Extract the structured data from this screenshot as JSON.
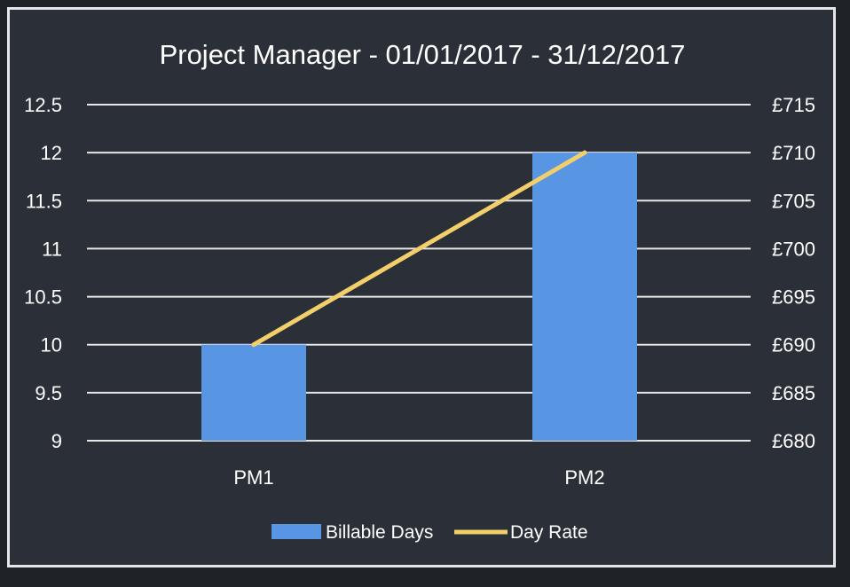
{
  "chart_data": {
    "type": "bar",
    "title": "Project Manager - 01/01/2017 - 31/12/2017",
    "categories": [
      "PM1",
      "PM2"
    ],
    "series": [
      {
        "name": "Billable Days",
        "type": "bar",
        "axis": "left",
        "values": [
          10,
          12
        ]
      },
      {
        "name": "Day Rate",
        "type": "line",
        "axis": "right",
        "values": [
          690,
          710
        ]
      }
    ],
    "y_left": {
      "ylim": [
        9,
        12.5
      ],
      "ticks": [
        9,
        9.5,
        10,
        10.5,
        11,
        11.5,
        12,
        12.5
      ],
      "tick_labels": [
        "9",
        "9.5",
        "10",
        "10.5",
        "11",
        "11.5",
        "12",
        "12.5"
      ]
    },
    "y_right": {
      "ylim": [
        680,
        715
      ],
      "ticks": [
        680,
        685,
        690,
        695,
        700,
        705,
        710,
        715
      ],
      "tick_labels": [
        "£680",
        "£685",
        "£690",
        "£695",
        "£700",
        "£705",
        "£710",
        "£715"
      ]
    },
    "grid": true,
    "legend": "bottom",
    "colors": {
      "bar": "#5895e2",
      "line": "#f2cf6a",
      "grid": "#e6e6e6",
      "background": "#2b2f37"
    }
  }
}
